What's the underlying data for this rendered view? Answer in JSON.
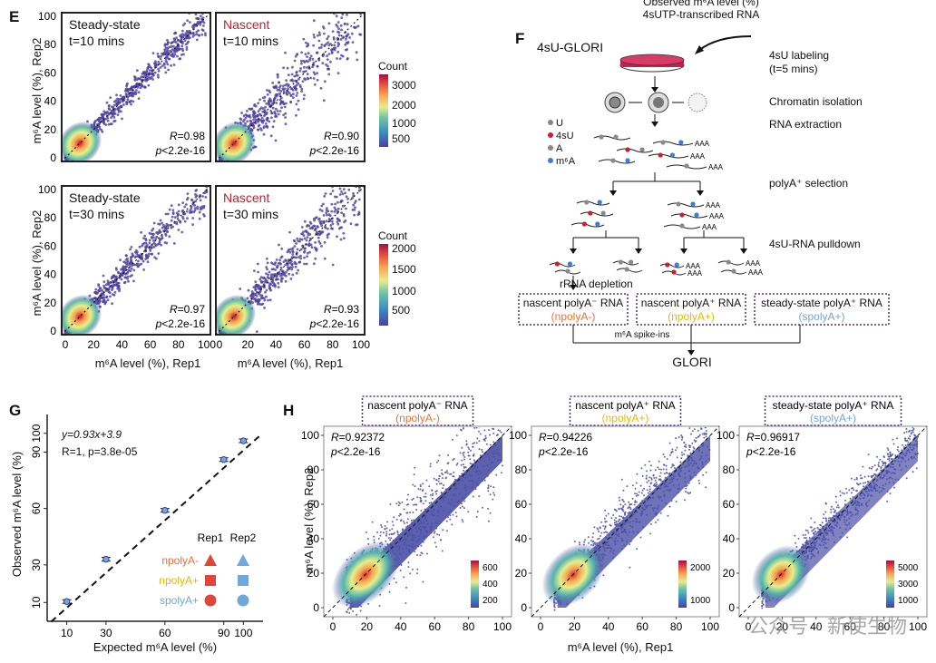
{
  "header_fragment": {
    "line1": "Observed m⁶A level (%)",
    "line2": "4sUTP-transcribed RNA"
  },
  "panel_E": {
    "letter": "E",
    "plots": [
      {
        "title1": "Steady-state",
        "title1_color": "#111111",
        "title2": "t=10 mins",
        "R": "0.98",
        "p": "2.2e-16"
      },
      {
        "title1": "Nascent",
        "title1_color": "#c8202c",
        "title2": "t=10 mins",
        "R": "0.90",
        "p": "2.2e-16"
      },
      {
        "title1": "Steady-state",
        "title1_color": "#111111",
        "title2": "t=30 mins",
        "R": "0.97",
        "p": "2.2e-16"
      },
      {
        "title1": "Nascent",
        "title1_color": "#c8202c",
        "title2": "t=30 mins",
        "R": "0.93",
        "p": "2.2e-16"
      }
    ],
    "ylabel": "m⁶A level (%), Rep2",
    "xlabel": "m⁶A level (%), Rep1",
    "ticks": [
      "0",
      "20",
      "40",
      "60",
      "80",
      "100"
    ],
    "colorbar1": {
      "title": "Count",
      "ticks": [
        "3000",
        "2000",
        "1000",
        "500"
      ]
    },
    "colorbar2": {
      "title": "Count",
      "ticks": [
        "2000",
        "1500",
        "1000",
        "500"
      ]
    }
  },
  "panel_F": {
    "letter": "F",
    "method": "4sU-GLORI",
    "steps": [
      "4sU labeling",
      "(t=5 mins)",
      "Chromatin isolation",
      "RNA extraction",
      "polyA⁺ selection",
      "4sU-RNA pulldown",
      "rRNA depletion"
    ],
    "legend": [
      {
        "label": "U",
        "color": "#888888"
      },
      {
        "label": "4sU",
        "color": "#c8202c"
      },
      {
        "label": "A",
        "color": "#888888"
      },
      {
        "label": "m⁶A",
        "color": "#3a7fd5"
      }
    ],
    "polyA_tag": "AAA",
    "boxes": [
      {
        "title": "nascent polyA⁻ RNA",
        "sub": "(npolyA-)",
        "sub_color": "#f07030"
      },
      {
        "title": "nascent polyA⁺ RNA",
        "sub": "(npolyA+)",
        "sub_color": "#e8b800"
      },
      {
        "title": "steady-state polyA⁺ RNA",
        "sub": "(spolyA+)",
        "sub_color": "#6ea8dc"
      }
    ],
    "spike": "m⁶A spike-ins",
    "glori": "GLORI"
  },
  "panel_G": {
    "letter": "G",
    "equation": "y=0.93x+3.9",
    "stats": "R=1, p=3.8e-05",
    "ylabel": "Observed m⁶A level (%)",
    "xlabel": "Expected m⁶A level (%)",
    "yticks": [
      "10",
      "30",
      "60",
      "90",
      "100"
    ],
    "xticks": [
      "10",
      "30",
      "60",
      "90",
      "100"
    ],
    "legend_cols": [
      "Rep1",
      "Rep2"
    ],
    "legend_rows": [
      {
        "label": "npolyA-",
        "color": "#f07030",
        "rep1": "#e0453a",
        "rep2": "#6ea8dc"
      },
      {
        "label": "npolyA+",
        "color": "#e8b800",
        "rep1": "#e0453a",
        "rep2": "#6ea8dc"
      },
      {
        "label": "spolyA+",
        "color": "#6ea8dc",
        "rep1": "#e0453a",
        "rep2": "#6ea8dc"
      }
    ]
  },
  "chart_data": [
    {
      "type": "scatter",
      "title": "",
      "xlabel": "Expected m⁶A level (%)",
      "ylabel": "Observed m⁶A level (%)",
      "xlim": [
        0,
        110
      ],
      "ylim": [
        0,
        110
      ],
      "x": [
        10,
        30,
        60,
        90,
        100
      ],
      "y": [
        10.5,
        33,
        59,
        86,
        96
      ]
    }
  ],
  "panel_H": {
    "letter": "H",
    "plots": [
      {
        "box_title": "nascent polyA⁻ RNA",
        "box_sub": "(npolyA-)",
        "sub_color": "#f07030",
        "R": "0.92372",
        "p": "2.2e-16",
        "cb": [
          "600",
          "400",
          "200"
        ]
      },
      {
        "box_title": "nascent polyA⁺ RNA",
        "box_sub": "(npolyA+)",
        "sub_color": "#e8b800",
        "R": "0.94226",
        "p": "2.2e-16",
        "cb": [
          "2000",
          "1000"
        ]
      },
      {
        "box_title": "steady-state polyA⁺ RNA",
        "box_sub": "(spolyA+)",
        "sub_color": "#6ea8dc",
        "R": "0.96917",
        "p": "2.2e-16",
        "cb": [
          "5000",
          "3000",
          "1000"
        ]
      }
    ],
    "ylabel": "m⁶A level (%), Rep2",
    "xlabel": "m⁶A level (%), Rep1",
    "ticks": [
      "0",
      "20",
      "40",
      "60",
      "80",
      "100"
    ]
  },
  "watermark": "公众号 · 新使生物"
}
